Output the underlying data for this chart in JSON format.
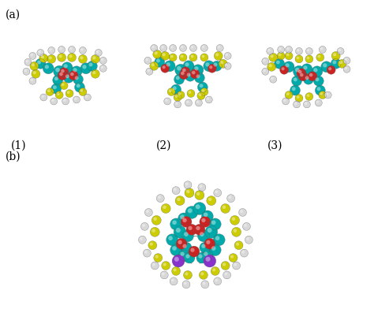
{
  "bg_color": "#ffffff",
  "label_a": "(a)",
  "label_b": "(b)",
  "label_1": "(1)",
  "label_2": "(2)",
  "label_3": "(3)",
  "colors": {
    "teal": "#00AAAA",
    "yellow": "#CCCC00",
    "red": "#CC2222",
    "white_atom": "#D8D8D8",
    "purple": "#8833CC",
    "bond": "#999999"
  },
  "figsize": [
    4.74,
    3.92
  ],
  "dpi": 100
}
